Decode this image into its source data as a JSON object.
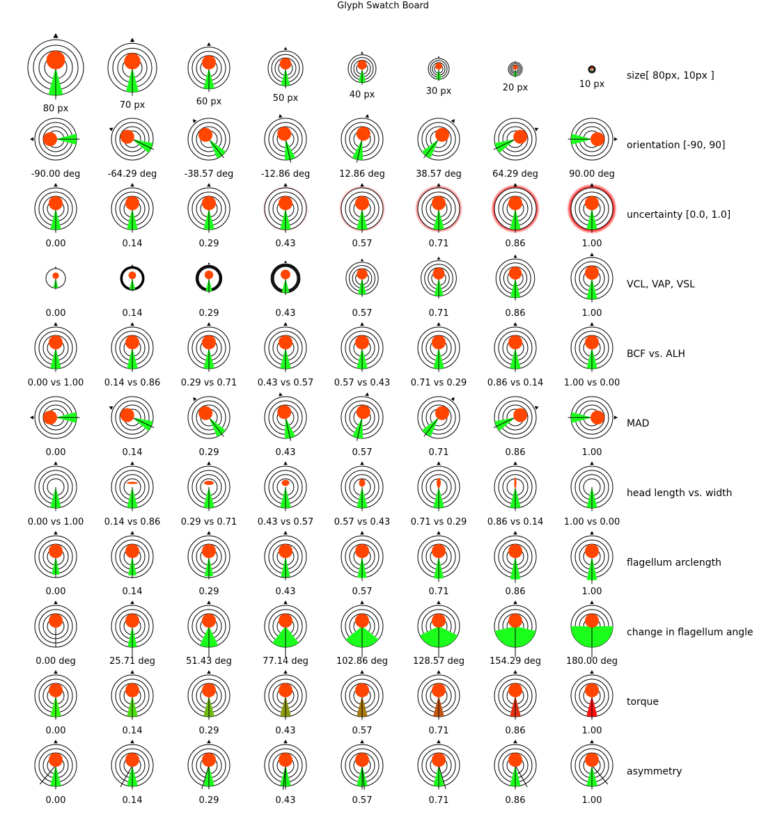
{
  "title": "Glyph Swatch Board",
  "colors": {
    "head": "#ff4500",
    "flagellum_fill": "#1cff1c",
    "ring_stroke": "#000000",
    "uncertainty_halo": "#ff0000",
    "torque_start": "#33ff10",
    "torque_end": "#ff1010"
  },
  "rows": [
    {
      "key": "size",
      "label": "size[ 80px, 10px ]",
      "values": [
        80,
        70,
        60,
        50,
        40,
        30,
        20,
        10
      ],
      "captions": [
        "80 px",
        "70 px",
        "60 px",
        "50 px",
        "40 px",
        "30 px",
        "20 px",
        "10 px"
      ]
    },
    {
      "key": "orientation",
      "label": "orientation [-90, 90]",
      "values": [
        -90,
        -64.29,
        -38.57,
        -12.86,
        12.86,
        38.57,
        64.29,
        90
      ],
      "captions": [
        "-90.00 deg",
        "-64.29 deg",
        "-38.57 deg",
        "-12.86 deg",
        "12.86 deg",
        "38.57 deg",
        "64.29 deg",
        "90.00 deg"
      ]
    },
    {
      "key": "uncertainty",
      "label": "uncertainty [0.0, 1.0]",
      "values": [
        0,
        0.14,
        0.29,
        0.43,
        0.57,
        0.71,
        0.86,
        1.0
      ],
      "captions": [
        "0.00",
        "0.14",
        "0.29",
        "0.43",
        "0.57",
        "0.71",
        "0.86",
        "1.00"
      ]
    },
    {
      "key": "vcl",
      "label": "VCL, VAP, VSL",
      "values": [
        0,
        0.14,
        0.29,
        0.43,
        0.57,
        0.71,
        0.86,
        1.0
      ],
      "captions": [
        "0.00",
        "0.14",
        "0.29",
        "0.43",
        "0.57",
        "0.71",
        "0.86",
        "1.00"
      ]
    },
    {
      "key": "bcf",
      "label": "BCF vs. ALH",
      "values": [
        0,
        0.14,
        0.29,
        0.43,
        0.57,
        0.71,
        0.86,
        1.0
      ],
      "captions": [
        "0.00 vs 1.00",
        "0.14 vs 0.86",
        "0.29 vs 0.71",
        "0.43 vs 0.57",
        "0.57 vs 0.43",
        "0.71 vs 0.29",
        "0.86 vs 0.14",
        "1.00 vs 0.00"
      ]
    },
    {
      "key": "mad",
      "label": "MAD",
      "values": [
        0,
        0.14,
        0.29,
        0.43,
        0.57,
        0.71,
        0.86,
        1.0
      ],
      "captions": [
        "0.00",
        "0.14",
        "0.29",
        "0.43",
        "0.57",
        "0.71",
        "0.86",
        "1.00"
      ]
    },
    {
      "key": "head",
      "label": "head length vs. width",
      "values": [
        0,
        0.14,
        0.29,
        0.43,
        0.57,
        0.71,
        0.86,
        1.0
      ],
      "captions": [
        "0.00 vs 1.00",
        "0.14 vs 0.86",
        "0.29 vs 0.71",
        "0.43 vs 0.57",
        "0.57 vs 0.43",
        "0.71 vs 0.29",
        "0.86 vs 0.14",
        "1.00 vs 0.00"
      ]
    },
    {
      "key": "arclength",
      "label": "flagellum arclength",
      "values": [
        0,
        0.14,
        0.29,
        0.43,
        0.57,
        0.71,
        0.86,
        1.0
      ],
      "captions": [
        "0.00",
        "0.14",
        "0.29",
        "0.43",
        "0.57",
        "0.71",
        "0.86",
        "1.00"
      ]
    },
    {
      "key": "flag_angle",
      "label": "change in flagellum angle",
      "values": [
        0,
        25.71,
        51.43,
        77.14,
        102.86,
        128.57,
        154.29,
        180
      ],
      "captions": [
        "0.00 deg",
        "25.71 deg",
        "51.43 deg",
        "77.14 deg",
        "102.86 deg",
        "128.57 deg",
        "154.29 deg",
        "180.00 deg"
      ]
    },
    {
      "key": "torque",
      "label": "torque",
      "values": [
        0,
        0.14,
        0.29,
        0.43,
        0.57,
        0.71,
        0.86,
        1.0
      ],
      "captions": [
        "0.00",
        "0.14",
        "0.29",
        "0.43",
        "0.57",
        "0.71",
        "0.86",
        "1.00"
      ]
    },
    {
      "key": "asymmetry",
      "label": "asymmetry",
      "values": [
        0,
        0.14,
        0.29,
        0.43,
        0.57,
        0.71,
        0.86,
        1.0
      ],
      "captions": [
        "0.00",
        "0.14",
        "0.29",
        "0.43",
        "0.57",
        "0.71",
        "0.86",
        "1.00"
      ]
    }
  ]
}
